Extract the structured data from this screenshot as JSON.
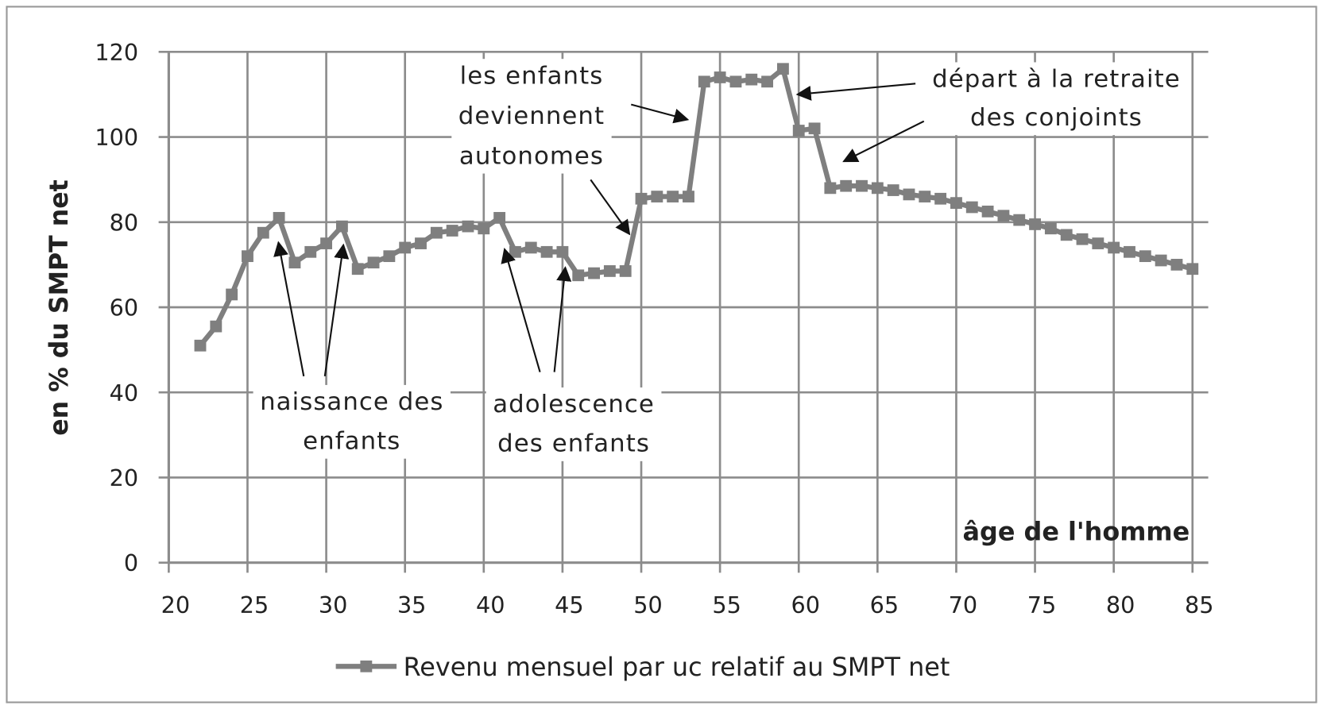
{
  "chart_data": {
    "type": "line",
    "x": [
      22,
      23,
      24,
      25,
      26,
      27,
      28,
      29,
      30,
      31,
      32,
      33,
      34,
      35,
      36,
      37,
      38,
      39,
      40,
      41,
      42,
      43,
      44,
      45,
      46,
      47,
      48,
      49,
      50,
      51,
      52,
      53,
      54,
      55,
      56,
      57,
      58,
      59,
      60,
      61,
      62,
      63,
      64,
      65,
      66,
      67,
      68,
      69,
      70,
      71,
      72,
      73,
      74,
      75,
      76,
      77,
      78,
      79,
      80,
      81,
      82,
      83,
      84,
      85
    ],
    "series": [
      {
        "name": "Revenu mensuel par uc relatif au SMPT net",
        "color": "#7f7f7f",
        "values": [
          51,
          55.5,
          63,
          72,
          77.5,
          81,
          70.5,
          73,
          75,
          79,
          69,
          70.5,
          72,
          74,
          75,
          77.5,
          78,
          79,
          78.5,
          81,
          73,
          74,
          73,
          73,
          67.5,
          68,
          68.5,
          68.5,
          85.5,
          86,
          86,
          86,
          113,
          114,
          113,
          113.5,
          113,
          116,
          101.5,
          102,
          88,
          88.5,
          88.5,
          88,
          87.5,
          86.5,
          86,
          85.5,
          84.5,
          83.5,
          82.5,
          81.5,
          80.5,
          79.5,
          78.5,
          77,
          76,
          75,
          74,
          73,
          72,
          71,
          70,
          69
        ]
      }
    ],
    "xlim": [
      20,
      86
    ],
    "xticks": [
      20,
      25,
      30,
      35,
      40,
      45,
      50,
      55,
      60,
      65,
      70,
      75,
      80,
      85
    ],
    "ylim": [
      0,
      120
    ],
    "yticks": [
      0,
      20,
      40,
      60,
      80,
      100,
      120
    ],
    "grid": true,
    "xlabel": "âge de l'homme",
    "ylabel": "en % du SMPT net",
    "annotations": [
      {
        "lines": [
          "naissance des",
          "enfants"
        ]
      },
      {
        "lines": [
          "adolescence",
          "des enfants"
        ]
      },
      {
        "lines": [
          "les enfants",
          "deviennent",
          "autonomes"
        ]
      },
      {
        "lines": [
          "départ à la retraite",
          "des conjoints"
        ]
      }
    ]
  }
}
